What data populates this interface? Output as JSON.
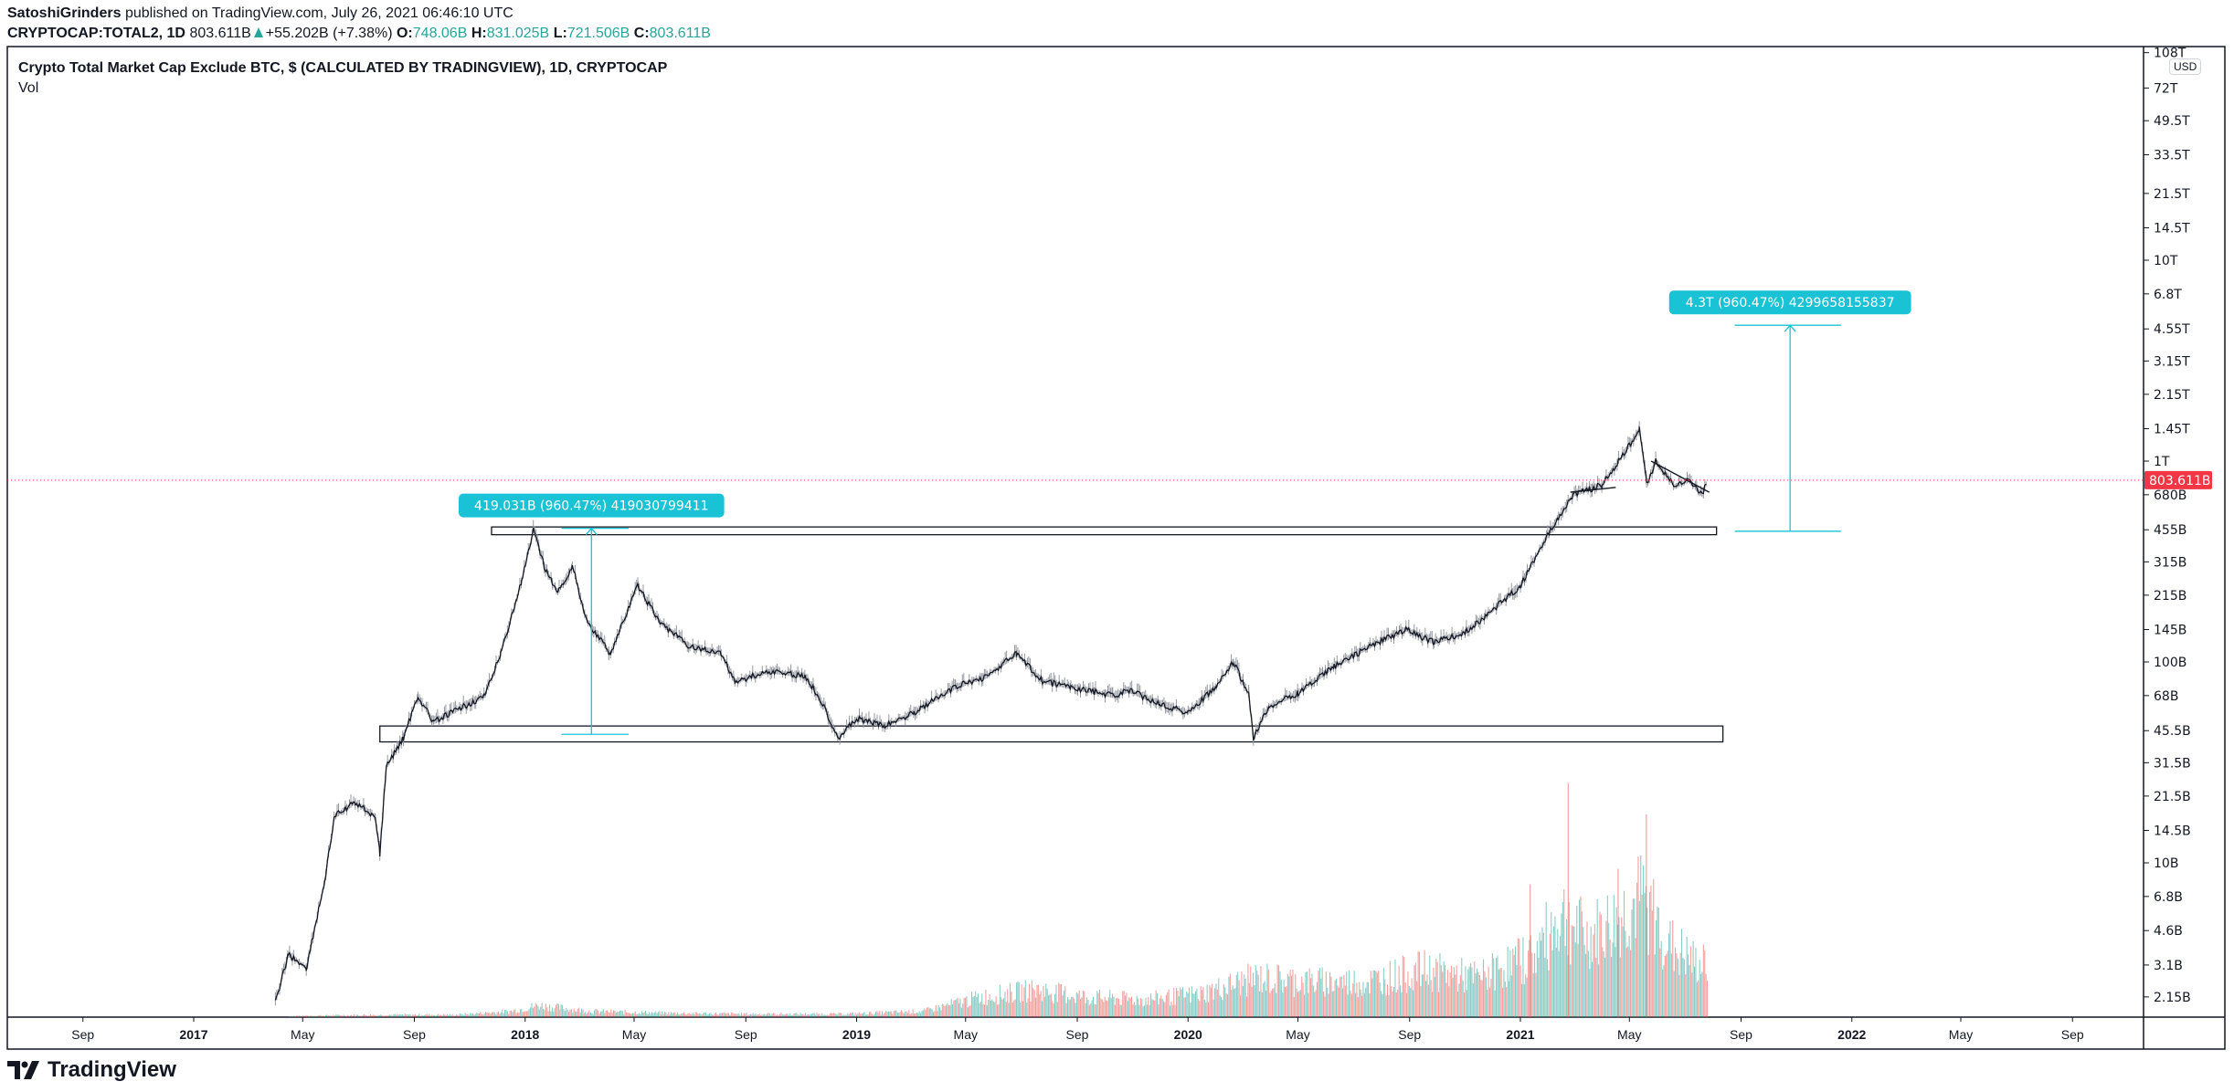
{
  "header": {
    "author": "SatoshiGrinders",
    "published": "published on TradingView.com, July 26, 2021 06:46:10 UTC",
    "symbol": "CRYPTOCAP:TOTAL2, 1D",
    "last": "803.611B",
    "change": "+55.202B (+7.38%)",
    "o_label": "O:",
    "o": "748.06B",
    "h_label": "H:",
    "h": "831.025B",
    "l_label": "L:",
    "l": "721.506B",
    "c_label": "C:",
    "c": "803.611B"
  },
  "legend": {
    "title": "Crypto Total Market Cap Exclude BTC, $ (CALCULATED BY TRADINGVIEW), 1D, CRYPTOCAP",
    "volume": "Vol"
  },
  "currency": "USD",
  "brand": "TradingView",
  "colors": {
    "line": "#131722",
    "up": "#26a69a",
    "down": "#ef5350",
    "measure": "#1ac2d6",
    "price_tag": "#f23645"
  },
  "chart_data": {
    "type": "line",
    "scale": "log",
    "grid": false,
    "current_price": {
      "value": 803611000000.0,
      "label": "803.611B"
    },
    "price_ticks": [
      {
        "label": "108T",
        "value": 108000000000000.0
      },
      {
        "label": "72T",
        "value": 72000000000000.0
      },
      {
        "label": "49.5T",
        "value": 49500000000000.0
      },
      {
        "label": "33.5T",
        "value": 33500000000000.0
      },
      {
        "label": "21.5T",
        "value": 21500000000000.0
      },
      {
        "label": "14.5T",
        "value": 14500000000000.0
      },
      {
        "label": "10T",
        "value": 10000000000000.0
      },
      {
        "label": "6.8T",
        "value": 6800000000000.0
      },
      {
        "label": "4.55T",
        "value": 4550000000000.0
      },
      {
        "label": "3.15T",
        "value": 3150000000000.0
      },
      {
        "label": "2.15T",
        "value": 2150000000000.0
      },
      {
        "label": "1.45T",
        "value": 1450000000000.0
      },
      {
        "label": "1T",
        "value": 1000000000000.0
      },
      {
        "label": "680B",
        "value": 680000000000.0
      },
      {
        "label": "455B",
        "value": 455000000000.0
      },
      {
        "label": "315B",
        "value": 315000000000.0
      },
      {
        "label": "215B",
        "value": 215000000000.0
      },
      {
        "label": "145B",
        "value": 145000000000.0
      },
      {
        "label": "100B",
        "value": 100000000000.0
      },
      {
        "label": "68B",
        "value": 68000000000.0
      },
      {
        "label": "45.5B",
        "value": 45500000000.0
      },
      {
        "label": "31.5B",
        "value": 31500000000.0
      },
      {
        "label": "21.5B",
        "value": 21500000000.0
      },
      {
        "label": "14.5B",
        "value": 14500000000.0
      },
      {
        "label": "10B",
        "value": 10000000000.0
      },
      {
        "label": "6.8B",
        "value": 6800000000.0
      },
      {
        "label": "4.6B",
        "value": 4600000000.0
      },
      {
        "label": "3.1B",
        "value": 3100000000.0
      },
      {
        "label": "2.15B",
        "value": 2150000000.0
      }
    ],
    "time_ticks": [
      {
        "label": "Sep",
        "date": "2016-09-01",
        "year": false
      },
      {
        "label": "2017",
        "date": "2017-01-01",
        "year": true
      },
      {
        "label": "May",
        "date": "2017-05-01",
        "year": false
      },
      {
        "label": "Sep",
        "date": "2017-09-01",
        "year": false
      },
      {
        "label": "2018",
        "date": "2018-01-01",
        "year": true
      },
      {
        "label": "May",
        "date": "2018-05-01",
        "year": false
      },
      {
        "label": "Sep",
        "date": "2018-09-01",
        "year": false
      },
      {
        "label": "2019",
        "date": "2019-01-01",
        "year": true
      },
      {
        "label": "May",
        "date": "2019-05-01",
        "year": false
      },
      {
        "label": "Sep",
        "date": "2019-09-01",
        "year": false
      },
      {
        "label": "2020",
        "date": "2020-01-01",
        "year": true
      },
      {
        "label": "May",
        "date": "2020-05-01",
        "year": false
      },
      {
        "label": "Sep",
        "date": "2020-09-01",
        "year": false
      },
      {
        "label": "2021",
        "date": "2021-01-01",
        "year": true
      },
      {
        "label": "May",
        "date": "2021-05-01",
        "year": false
      },
      {
        "label": "Sep",
        "date": "2021-09-01",
        "year": false
      },
      {
        "label": "2022",
        "date": "2022-01-01",
        "year": true
      },
      {
        "label": "May",
        "date": "2022-05-01",
        "year": false
      },
      {
        "label": "Sep",
        "date": "2022-09-01",
        "year": false
      }
    ],
    "price_series": [
      [
        "2017-04-01",
        2000000000.0
      ],
      [
        "2017-04-15",
        3500000000.0
      ],
      [
        "2017-05-05",
        3000000000.0
      ],
      [
        "2017-05-25",
        8000000000.0
      ],
      [
        "2017-06-05",
        17000000000.0
      ],
      [
        "2017-06-28",
        20000000000.0
      ],
      [
        "2017-07-20",
        17000000000.0
      ],
      [
        "2017-07-25",
        11000000000.0
      ],
      [
        "2017-08-01",
        30000000000.0
      ],
      [
        "2017-08-20",
        42000000000.0
      ],
      [
        "2017-09-05",
        68000000000.0
      ],
      [
        "2017-09-22",
        50000000000.0
      ],
      [
        "2017-10-25",
        60000000000.0
      ],
      [
        "2017-11-18",
        68000000000.0
      ],
      [
        "2017-12-05",
        110000000000.0
      ],
      [
        "2017-12-28",
        250000000000.0
      ],
      [
        "2018-01-10",
        450000000000.0
      ],
      [
        "2018-01-22",
        300000000000.0
      ],
      [
        "2018-02-06",
        220000000000.0
      ],
      [
        "2018-02-22",
        300000000000.0
      ],
      [
        "2018-03-10",
        160000000000.0
      ],
      [
        "2018-04-05",
        110000000000.0
      ],
      [
        "2018-05-05",
        240000000000.0
      ],
      [
        "2018-05-28",
        160000000000.0
      ],
      [
        "2018-06-30",
        120000000000.0
      ],
      [
        "2018-08-05",
        110000000000.0
      ],
      [
        "2018-08-20",
        80000000000.0
      ],
      [
        "2018-09-28",
        90000000000.0
      ],
      [
        "2018-11-05",
        85000000000.0
      ],
      [
        "2018-11-20",
        68000000000.0
      ],
      [
        "2018-12-12",
        42000000000.0
      ],
      [
        "2019-01-01",
        52000000000.0
      ],
      [
        "2019-02-01",
        48000000000.0
      ],
      [
        "2019-03-05",
        56000000000.0
      ],
      [
        "2019-04-20",
        75000000000.0
      ],
      [
        "2019-05-25",
        85000000000.0
      ],
      [
        "2019-06-26",
        110000000000.0
      ],
      [
        "2019-07-25",
        80000000000.0
      ],
      [
        "2019-08-25",
        75000000000.0
      ],
      [
        "2019-10-10",
        68000000000.0
      ],
      [
        "2019-10-28",
        72000000000.0
      ],
      [
        "2019-12-01",
        62000000000.0
      ],
      [
        "2020-01-01",
        56000000000.0
      ],
      [
        "2020-02-01",
        75000000000.0
      ],
      [
        "2020-02-20",
        100000000000.0
      ],
      [
        "2020-03-08",
        68000000000.0
      ],
      [
        "2020-03-13",
        42000000000.0
      ],
      [
        "2020-03-30",
        60000000000.0
      ],
      [
        "2020-05-01",
        70000000000.0
      ],
      [
        "2020-06-10",
        95000000000.0
      ],
      [
        "2020-07-20",
        120000000000.0
      ],
      [
        "2020-08-28",
        145000000000.0
      ],
      [
        "2020-09-28",
        125000000000.0
      ],
      [
        "2020-11-01",
        140000000000.0
      ],
      [
        "2020-12-01",
        180000000000.0
      ],
      [
        "2021-01-01",
        240000000000.0
      ],
      [
        "2021-01-25",
        380000000000.0
      ],
      [
        "2021-02-12",
        530000000000.0
      ],
      [
        "2021-02-28",
        680000000000.0
      ],
      [
        "2021-04-01",
        760000000000.0
      ],
      [
        "2021-04-16",
        950000000000.0
      ],
      [
        "2021-05-01",
        1200000000000.0
      ],
      [
        "2021-05-12",
        1450000000000.0
      ],
      [
        "2021-05-20",
        760000000000.0
      ],
      [
        "2021-05-30",
        1000000000000.0
      ],
      [
        "2021-06-20",
        750000000000.0
      ],
      [
        "2021-07-05",
        800000000000.0
      ],
      [
        "2021-07-20",
        680000000000.0
      ],
      [
        "2021-07-26",
        803611000000.0
      ]
    ],
    "volume_monthly": [
      [
        "2017-04",
        0.3
      ],
      [
        "2017-06",
        0.5
      ],
      [
        "2017-08",
        0.6
      ],
      [
        "2017-10",
        0.6
      ],
      [
        "2017-12",
        1.5
      ],
      [
        "2018-01",
        3
      ],
      [
        "2018-03",
        1.5
      ],
      [
        "2018-06",
        1
      ],
      [
        "2018-09",
        0.8
      ],
      [
        "2018-12",
        0.8
      ],
      [
        "2019-03",
        1.5
      ],
      [
        "2019-05",
        5
      ],
      [
        "2019-07",
        7
      ],
      [
        "2019-09",
        5
      ],
      [
        "2019-11",
        4.5
      ],
      [
        "2020-01",
        6
      ],
      [
        "2020-03",
        10
      ],
      [
        "2020-05",
        9
      ],
      [
        "2020-07",
        9
      ],
      [
        "2020-09",
        12
      ],
      [
        "2020-11",
        10
      ],
      [
        "2021-01",
        16
      ],
      [
        "2021-02",
        26
      ],
      [
        "2021-03",
        20
      ],
      [
        "2021-04",
        24
      ],
      [
        "2021-05",
        30
      ],
      [
        "2021-06",
        18
      ],
      [
        "2021-07",
        13
      ]
    ],
    "volume_spikes": [
      [
        "2021-02-22",
        60
      ],
      [
        "2021-05-19",
        52
      ],
      [
        "2021-04-18",
        38
      ],
      [
        "2021-01-11",
        34
      ]
    ],
    "zones": [
      {
        "from": "2017-11-25",
        "to": "2021-08-05",
        "top": 470000000000.0,
        "bottom": 430000000000.0
      },
      {
        "from": "2017-07-25",
        "to": "2021-08-12",
        "top": 48000000000.0,
        "bottom": 40000000000.0
      }
    ],
    "trendlines": [
      {
        "from": [
          "2021-02-25",
          700000000000.0
        ],
        "to": [
          "2021-04-16",
          740000000000.0
        ]
      },
      {
        "from": [
          "2021-05-25",
          1000000000000.0
        ],
        "to": [
          "2021-07-28",
          700000000000.0
        ]
      }
    ],
    "measures": [
      {
        "label": "419.031B (960.47%) 419030799411",
        "date": "2018-03-15",
        "from_date": "2018-02-10",
        "to_date": "2018-04-25",
        "low": 43630000000.0,
        "high": 462660000000.0
      },
      {
        "label": "4.3T (960.47%) 4299658155837",
        "date": "2021-10-25",
        "from_date": "2021-08-25",
        "to_date": "2021-12-20",
        "low": 447670000000.0,
        "high": 4747000000000.0
      }
    ]
  }
}
